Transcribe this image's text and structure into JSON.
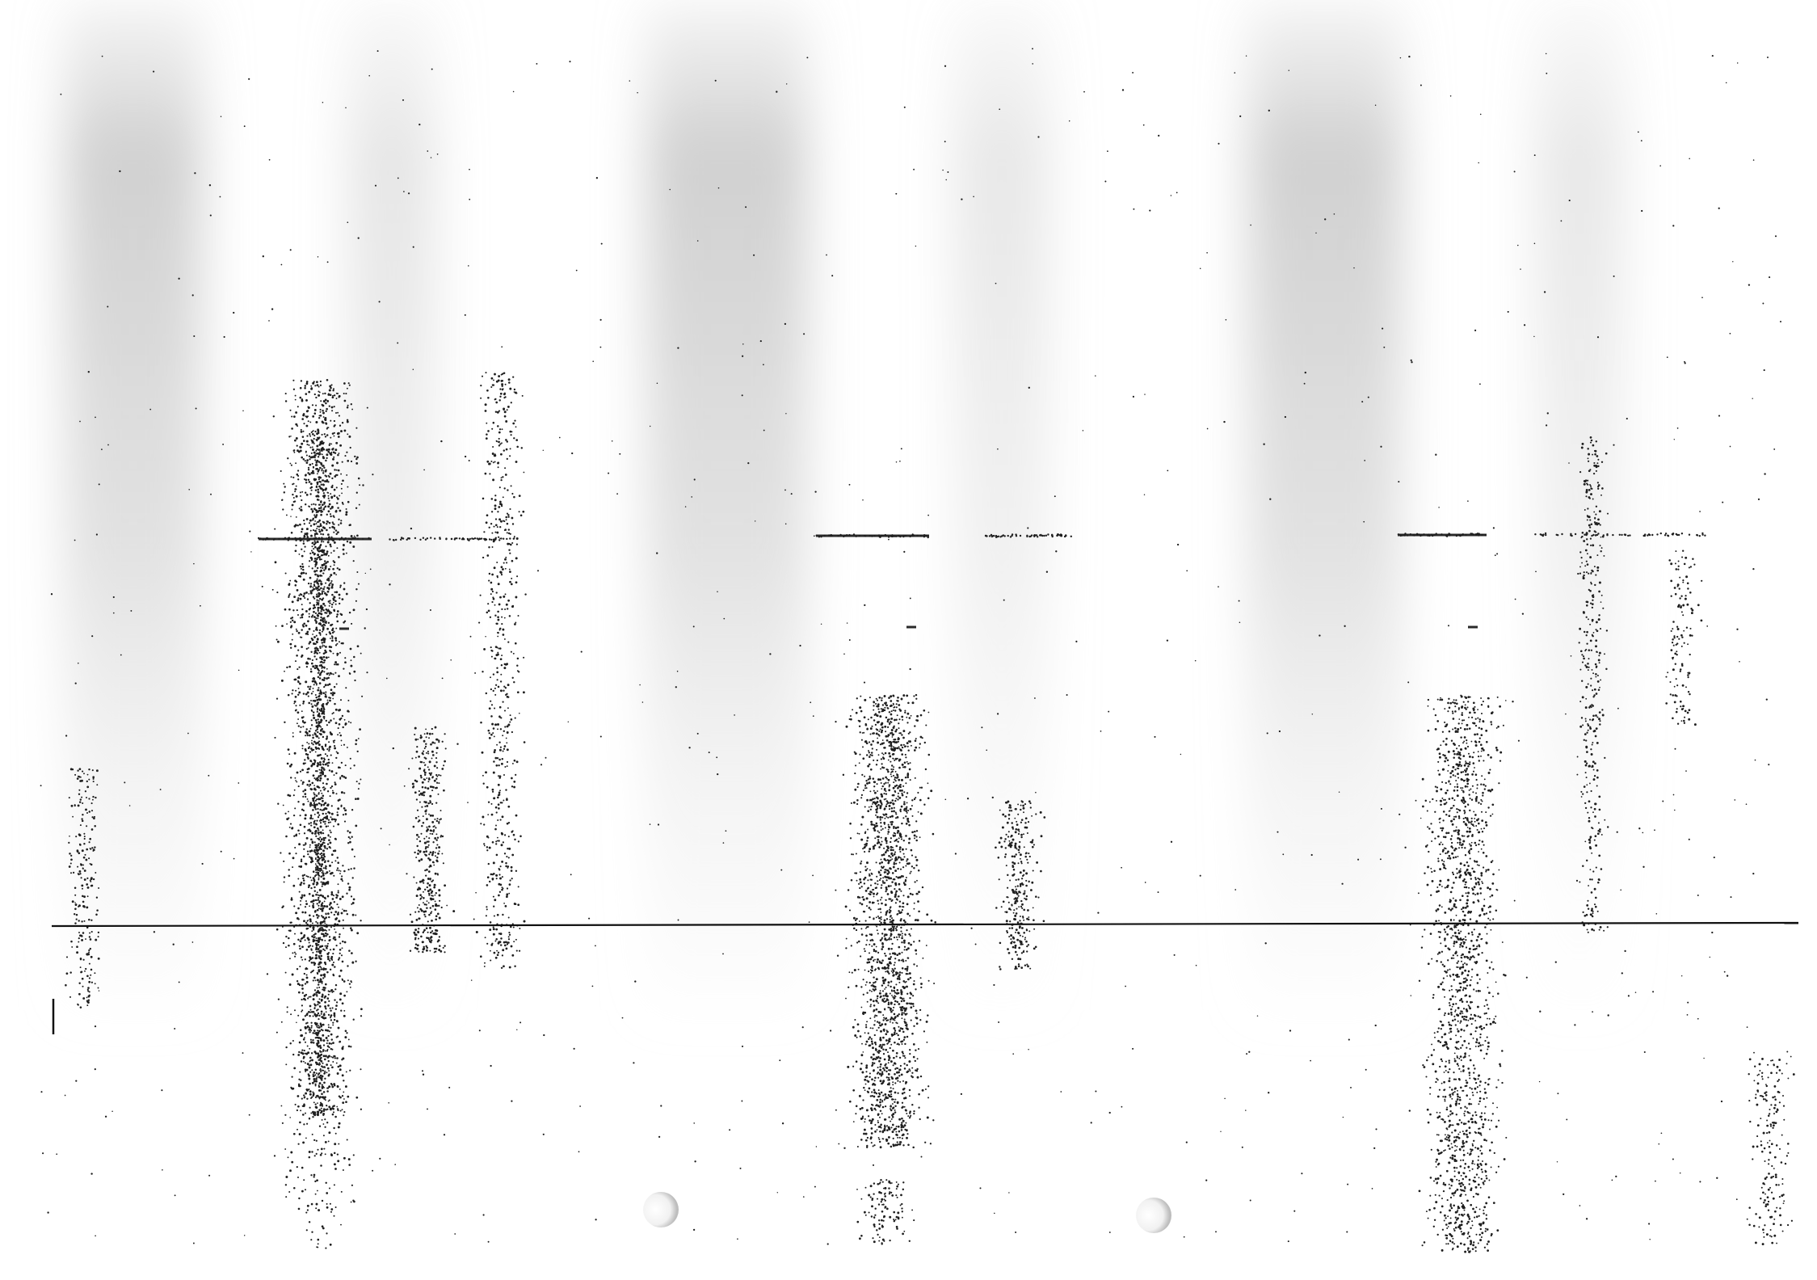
{
  "document": {
    "paper_color": "#ffffff",
    "ink_color": "#1a1a1a",
    "band_color": "#d9d9d9",
    "printed_text": []
  }
}
